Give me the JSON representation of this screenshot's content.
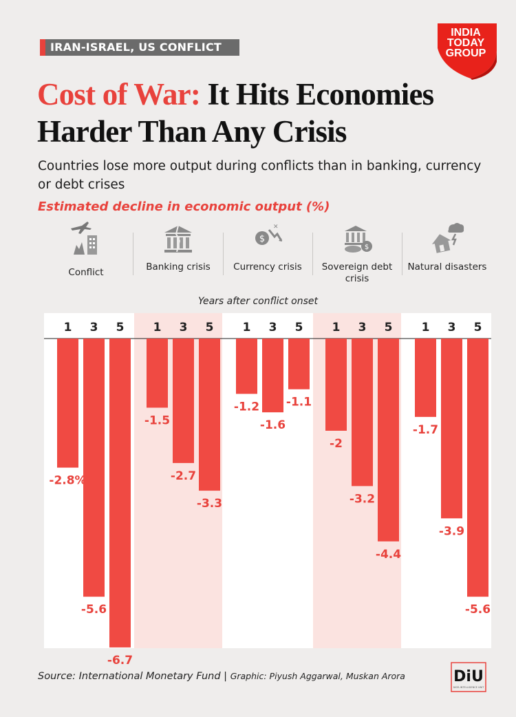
{
  "header": {
    "tag": "IRAN-ISRAEL, US CONFLICT",
    "logo": "INDIA TODAY GROUP",
    "title_accent": "Cost of War:",
    "title_rest_line1": "It Hits Economies",
    "title_line2": "Harder Than Any Crisis",
    "subtitle": "Countries lose more output during conflicts than in banking, currency or debt crises",
    "metric_label": "Estimated decline in economic output (%)"
  },
  "categories": [
    {
      "label": "Conflict",
      "icon": "conflict-icon"
    },
    {
      "label": "Banking crisis",
      "icon": "bank-icon"
    },
    {
      "label": "Currency crisis",
      "icon": "currency-icon"
    },
    {
      "label": "Sovereign debt crisis",
      "icon": "debt-icon"
    },
    {
      "label": "Natural disasters",
      "icon": "disaster-icon"
    }
  ],
  "chart_data": {
    "type": "bar",
    "title": "Estimated decline in economic output (%)",
    "xlabel": "Years after conflict onset",
    "ylabel": "Estimated decline in economic output (%)",
    "ylim": [
      -7,
      0
    ],
    "categories": [
      "Conflict",
      "Banking crisis",
      "Currency crisis",
      "Sovereign debt crisis",
      "Natural disasters"
    ],
    "series": [
      {
        "name": "1",
        "values": [
          -2.8,
          -1.5,
          -1.2,
          -2,
          -1.7
        ]
      },
      {
        "name": "3",
        "values": [
          -5.6,
          -2.7,
          -1.6,
          -3.2,
          -3.9
        ]
      },
      {
        "name": "5",
        "values": [
          -6.7,
          -3.3,
          -1.1,
          -4.4,
          -5.6
        ]
      }
    ],
    "value_labels": [
      [
        "-2.8%",
        "-5.6",
        "-6.7"
      ],
      [
        "-1.5",
        "-2.7",
        "-3.3"
      ],
      [
        "-1.2",
        "-1.6",
        "-1.1"
      ],
      [
        "-2",
        "-3.2",
        "-4.4"
      ],
      [
        "-1.7",
        "-3.9",
        "-5.6"
      ]
    ],
    "colors": {
      "bar": "#f04a43",
      "label": "#e8423c",
      "shade": "#fbe3e0",
      "panel": "#ffffff"
    }
  },
  "footer": {
    "source": "Source: International Monetary Fund | ",
    "credit": "Graphic: Piyush Aggarwal, Muskan Arora",
    "diu": "DiU",
    "diu_sub": "DATA INTELLIGENCE UNIT"
  }
}
